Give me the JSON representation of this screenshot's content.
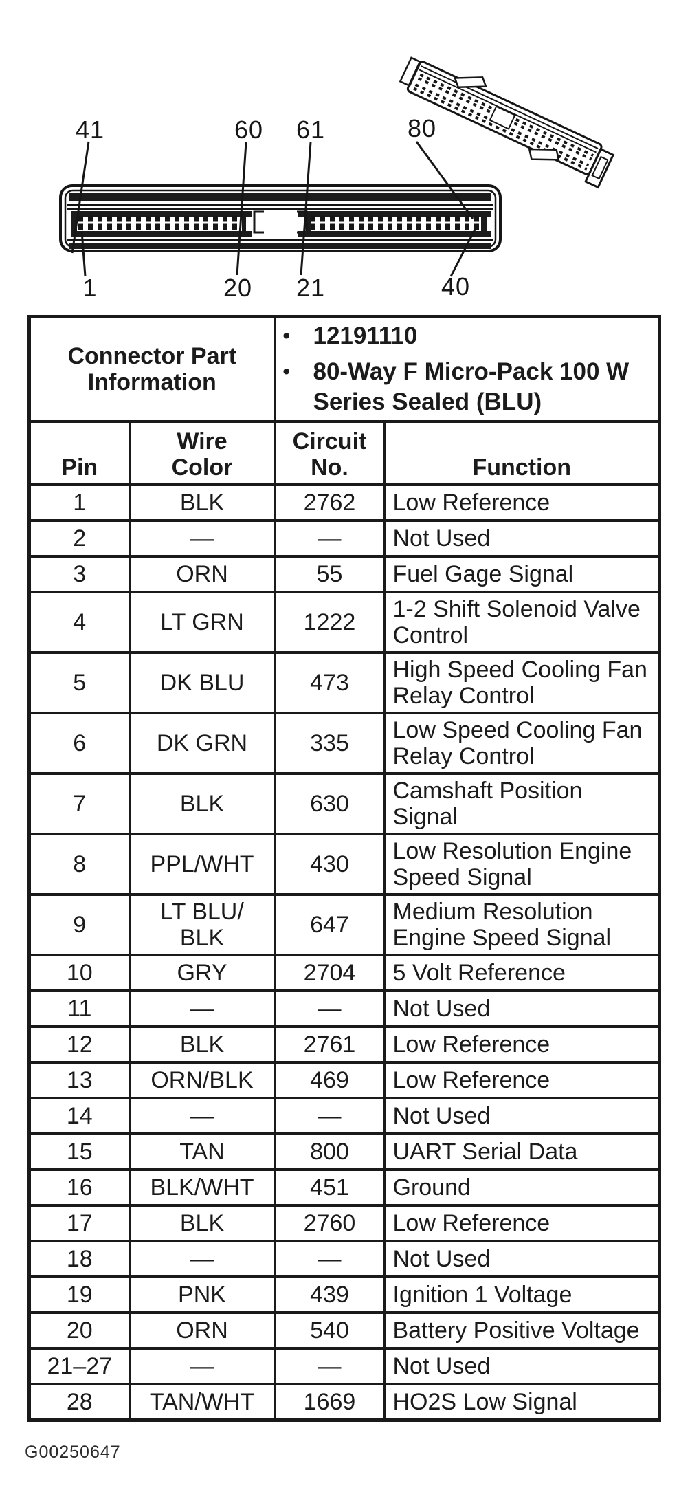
{
  "diagram": {
    "top_labels": [
      "41",
      "60",
      "61",
      "80"
    ],
    "bottom_labels": [
      "1",
      "20",
      "21",
      "40"
    ]
  },
  "table": {
    "part_info": {
      "title": "Connector Part\nInformation",
      "bullet": "•",
      "bullets": [
        "12191110",
        "80-Way F Micro-Pack 100 W\nSeries Sealed (BLU)"
      ]
    },
    "columns": [
      "Pin",
      "Wire\nColor",
      "Circuit\nNo.",
      "Function"
    ],
    "rows": [
      {
        "pin": "1",
        "wire": "BLK",
        "circuit": "2762",
        "function": "Low Reference"
      },
      {
        "pin": "2",
        "wire": "—",
        "circuit": "—",
        "function": "Not Used"
      },
      {
        "pin": "3",
        "wire": "ORN",
        "circuit": "55",
        "function": "Fuel Gage Signal"
      },
      {
        "pin": "4",
        "wire": "LT GRN",
        "circuit": "1222",
        "function": "1-2 Shift Solenoid Valve\nControl"
      },
      {
        "pin": "5",
        "wire": "DK BLU",
        "circuit": "473",
        "function": "High Speed Cooling Fan\nRelay Control"
      },
      {
        "pin": "6",
        "wire": "DK GRN",
        "circuit": "335",
        "function": "Low Speed Cooling Fan\nRelay Control"
      },
      {
        "pin": "7",
        "wire": "BLK",
        "circuit": "630",
        "function": "Camshaft Position\nSignal"
      },
      {
        "pin": "8",
        "wire": "PPL/WHT",
        "circuit": "430",
        "function": "Low Resolution Engine\nSpeed Signal"
      },
      {
        "pin": "9",
        "wire": "LT BLU/\nBLK",
        "circuit": "647",
        "function": "Medium Resolution\nEngine Speed Signal"
      },
      {
        "pin": "10",
        "wire": "GRY",
        "circuit": "2704",
        "function": "5 Volt Reference"
      },
      {
        "pin": "11",
        "wire": "—",
        "circuit": "—",
        "function": "Not Used"
      },
      {
        "pin": "12",
        "wire": "BLK",
        "circuit": "2761",
        "function": "Low Reference"
      },
      {
        "pin": "13",
        "wire": "ORN/BLK",
        "circuit": "469",
        "function": "Low Reference"
      },
      {
        "pin": "14",
        "wire": "—",
        "circuit": "—",
        "function": "Not Used"
      },
      {
        "pin": "15",
        "wire": "TAN",
        "circuit": "800",
        "function": "UART Serial Data"
      },
      {
        "pin": "16",
        "wire": "BLK/WHT",
        "circuit": "451",
        "function": "Ground"
      },
      {
        "pin": "17",
        "wire": "BLK",
        "circuit": "2760",
        "function": "Low Reference"
      },
      {
        "pin": "18",
        "wire": "—",
        "circuit": "—",
        "function": "Not Used"
      },
      {
        "pin": "19",
        "wire": "PNK",
        "circuit": "439",
        "function": "Ignition 1 Voltage"
      },
      {
        "pin": "20",
        "wire": "ORN",
        "circuit": "540",
        "function": "Battery Positive Voltage"
      },
      {
        "pin": "21–27",
        "wire": "—",
        "circuit": "—",
        "function": "Not Used"
      },
      {
        "pin": "28",
        "wire": "TAN/WHT",
        "circuit": "1669",
        "function": "HO2S Low Signal"
      }
    ]
  },
  "footer": {
    "figure_id": "G00250647"
  }
}
